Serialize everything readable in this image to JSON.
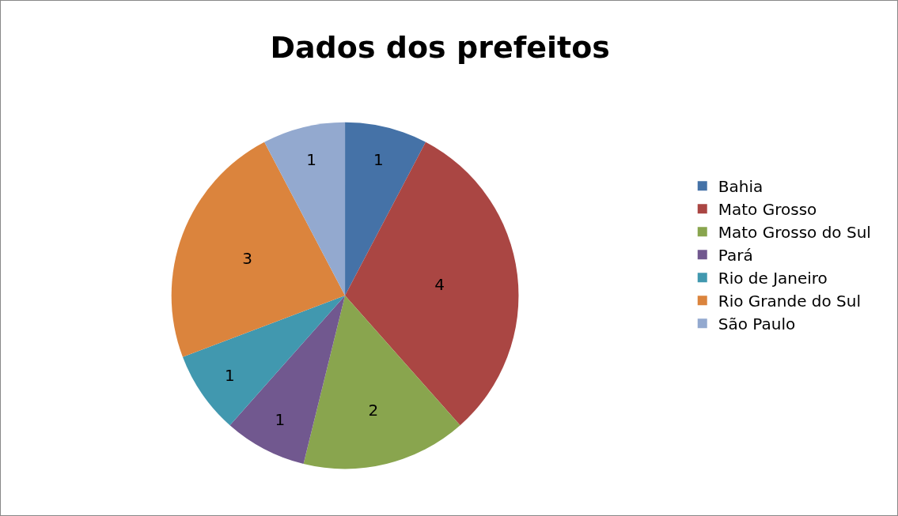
{
  "chart_data": {
    "type": "pie",
    "title": "Dados dos prefeitos",
    "categories": [
      "Bahia",
      "Mato Grosso",
      "Mato Grosso do Sul",
      "Pará",
      "Rio de Janeiro",
      "Rio Grande do Sul",
      "São Paulo"
    ],
    "values": [
      1,
      4,
      2,
      1,
      1,
      3,
      1
    ],
    "colors": [
      "#4572a7",
      "#aa4643",
      "#89a54e",
      "#71588f",
      "#4198af",
      "#db843d",
      "#93a9cf"
    ],
    "data_labels": true,
    "legend": "right"
  }
}
